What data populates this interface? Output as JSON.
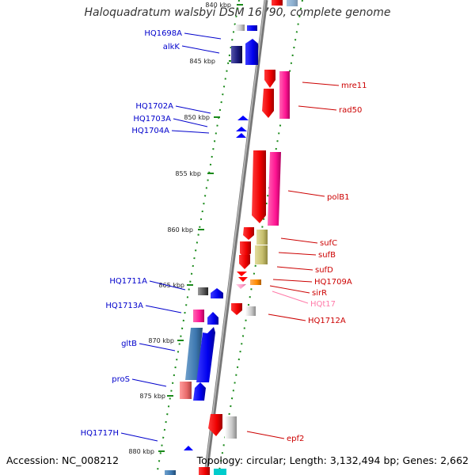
{
  "title": "Haloquadratum walsbyi DSM 16790, complete genome",
  "footer": {
    "accession": "Accession: NC_008212",
    "topology": "Topology: circular; Length: 3,132,494 bp; Genes: 2,662"
  },
  "ticks": [
    {
      "label": "840 kbp"
    },
    {
      "label": "845 kbp"
    },
    {
      "label": "850 kbp"
    },
    {
      "label": "855 kbp"
    },
    {
      "label": "860 kbp"
    },
    {
      "label": "865 kbp"
    },
    {
      "label": "870 kbp"
    },
    {
      "label": "875 kbp"
    },
    {
      "label": "880 kbp"
    }
  ],
  "genes_left": [
    {
      "name": "HQ1698A"
    },
    {
      "name": "alkK"
    },
    {
      "name": "HQ1702A"
    },
    {
      "name": "HQ1703A"
    },
    {
      "name": "HQ1704A"
    },
    {
      "name": "HQ1711A"
    },
    {
      "name": "HQ1713A"
    },
    {
      "name": "gltB"
    },
    {
      "name": "proS"
    },
    {
      "name": "HQ1717H"
    }
  ],
  "genes_right": [
    {
      "name": "mre11"
    },
    {
      "name": "rad50"
    },
    {
      "name": "polB1"
    },
    {
      "name": "sufC"
    },
    {
      "name": "sufB"
    },
    {
      "name": "sufD"
    },
    {
      "name": "HQ1709A"
    },
    {
      "name": "sirR"
    },
    {
      "name": "HQt17"
    },
    {
      "name": "HQ1712A"
    },
    {
      "name": "epf2"
    }
  ],
  "colors": {
    "backbone": "#888888",
    "forward_strand": "#0000ff",
    "reverse_strand": "#ff0000",
    "tick_dots": "#1a8a1a",
    "label_left": "#0000cc",
    "label_right": "#cc0000"
  }
}
